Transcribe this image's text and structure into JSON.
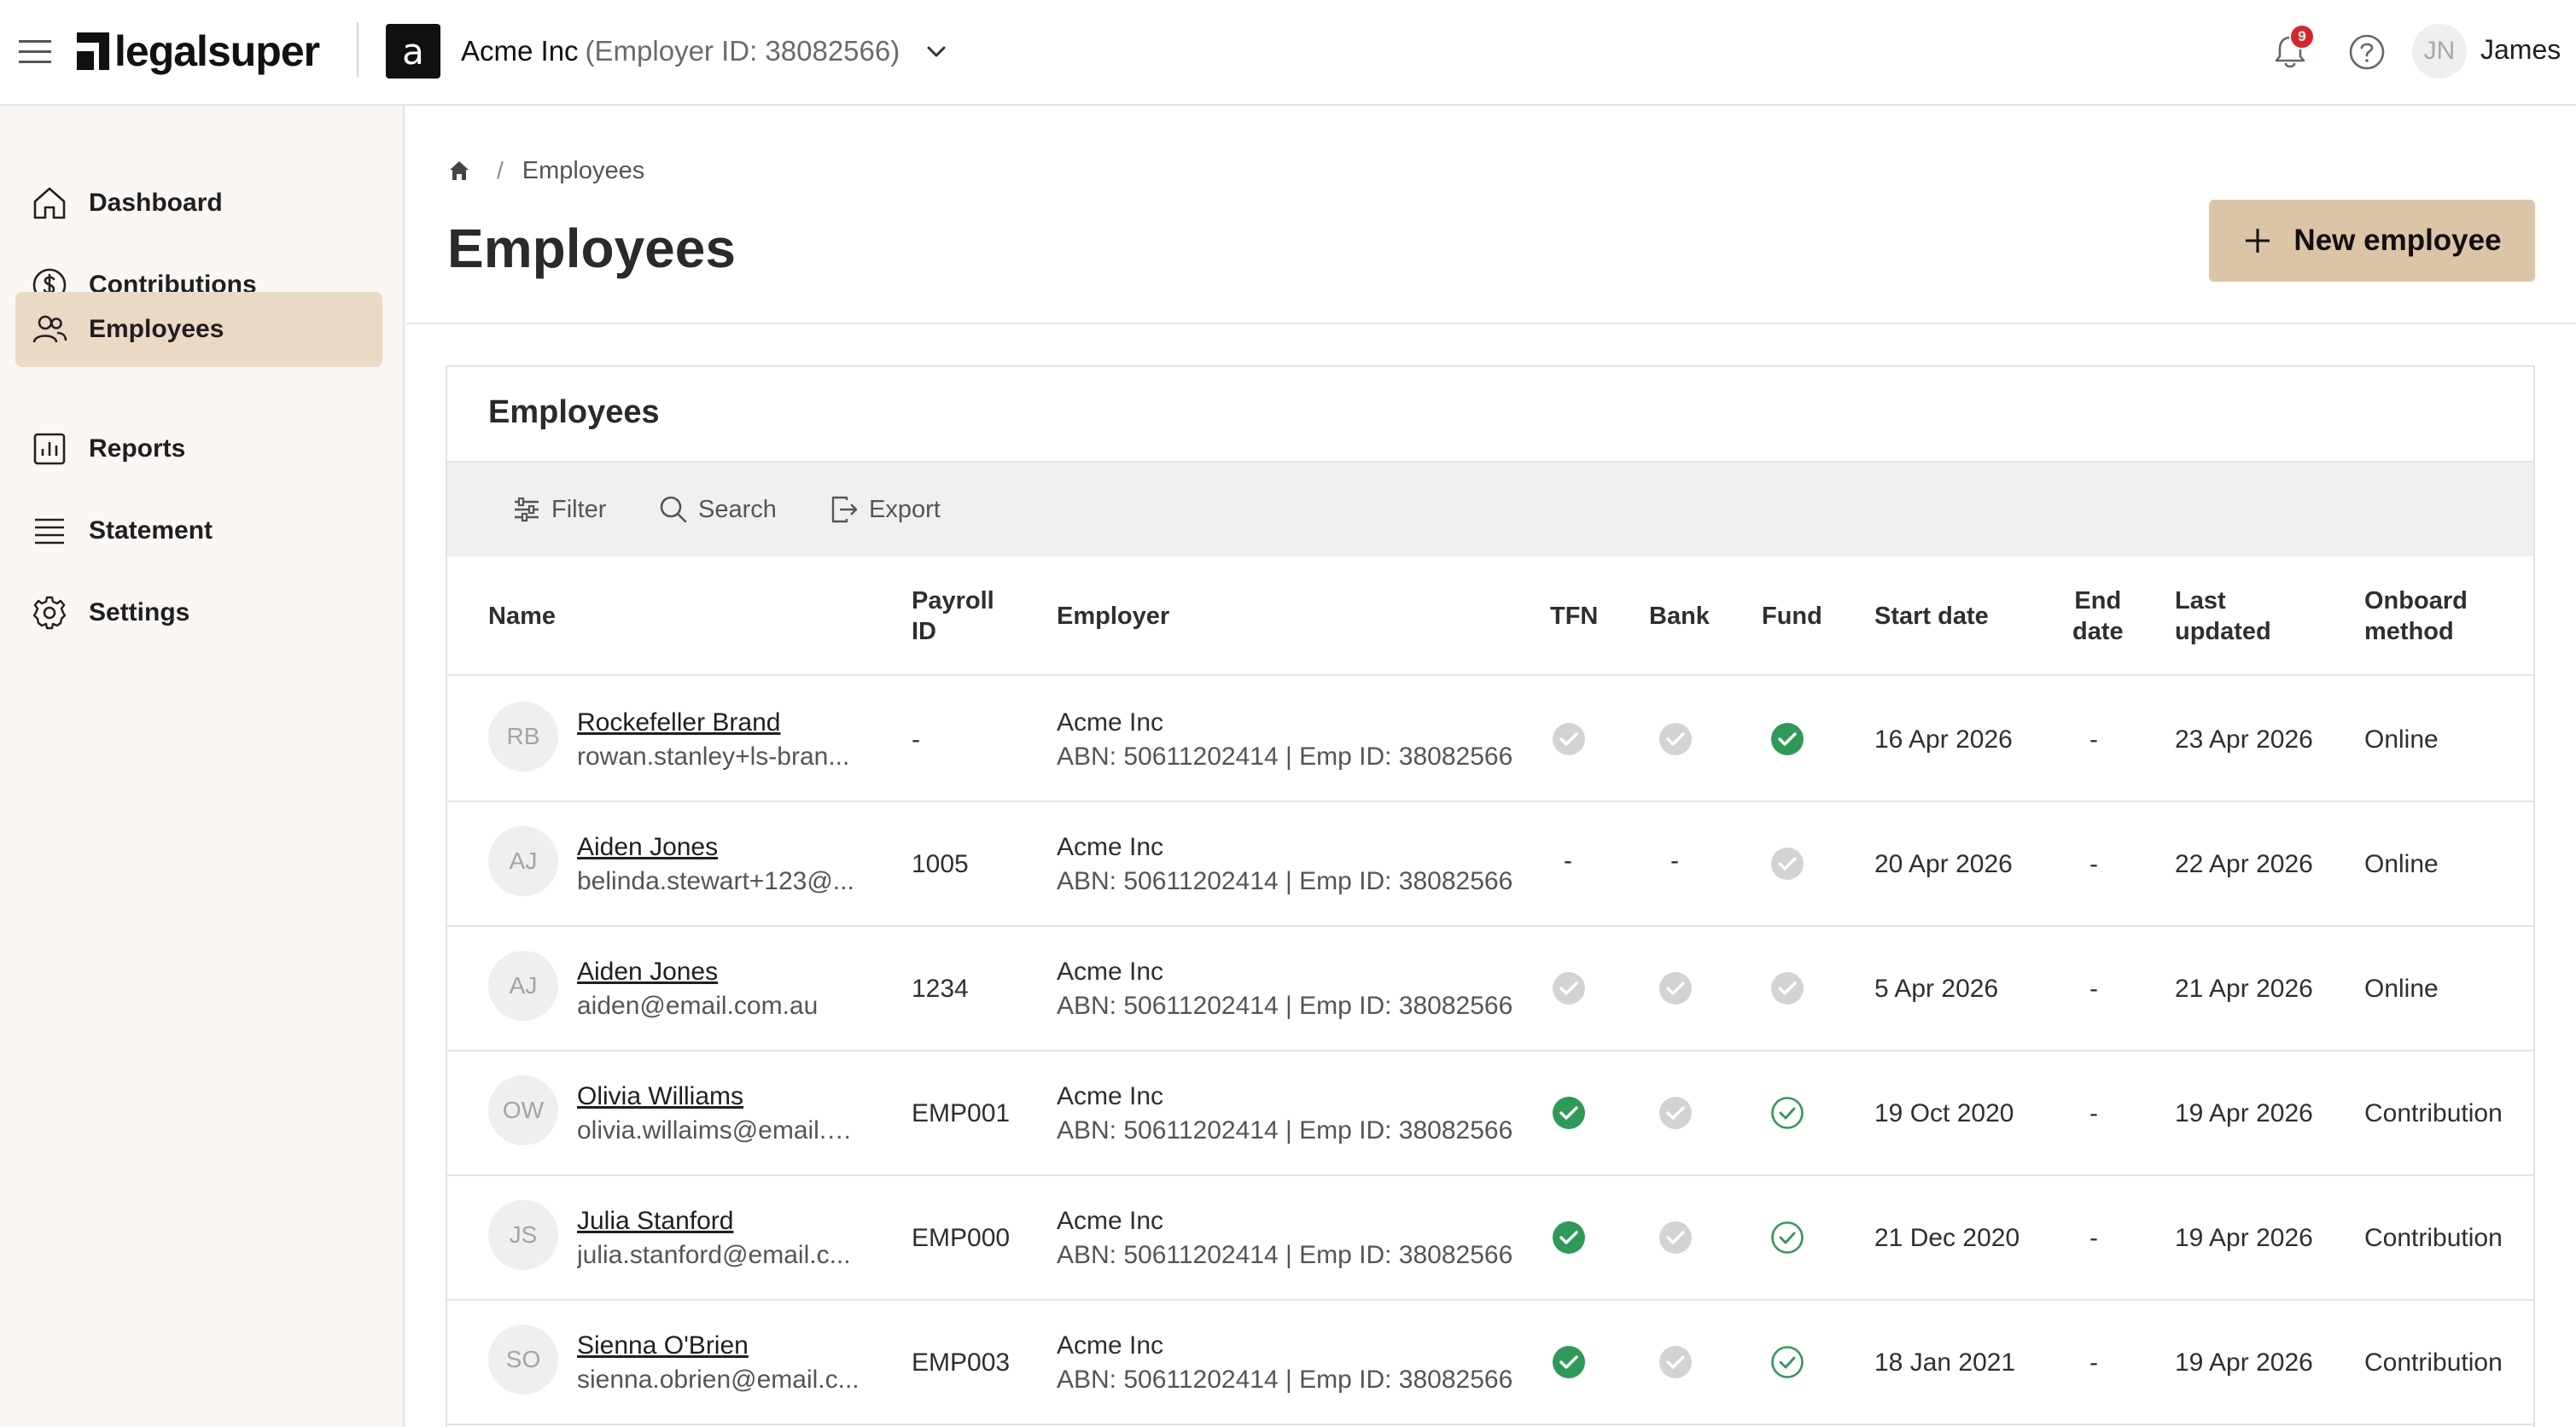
{
  "header": {
    "brand": "legalsuper",
    "employer_initial": "a",
    "employer_name": "Acme Inc",
    "employer_id": "(Employer ID: 38082566)",
    "notification_count": "9",
    "user_initials": "JN",
    "user_name": "James"
  },
  "sidebar": {
    "items": [
      {
        "label": "Dashboard",
        "icon": "home-icon"
      },
      {
        "label": "Contributions",
        "icon": "dollar-circle-icon"
      },
      {
        "label": "Employees",
        "icon": "users-icon",
        "active": true
      },
      {
        "label": "Reports",
        "icon": "bar-chart-icon"
      },
      {
        "label": "Statement",
        "icon": "list-icon"
      },
      {
        "label": "Settings",
        "icon": "gear-icon"
      }
    ]
  },
  "page": {
    "breadcrumb_sep": "/",
    "breadcrumb_current": "Employees",
    "title": "Employees",
    "new_button": "New employee"
  },
  "card": {
    "title": "Employees",
    "toolbar": {
      "filter": "Filter",
      "search": "Search",
      "export": "Export"
    },
    "columns": {
      "name": "Name",
      "payroll_1": "Payroll",
      "payroll_2": "ID",
      "employer": "Employer",
      "tfn": "TFN",
      "bank": "Bank",
      "fund": "Fund",
      "start": "Start date",
      "end_1": "End",
      "end_2": "date",
      "updated_1": "Last",
      "updated_2": "updated",
      "onboard_1": "Onboard",
      "onboard_2": "method"
    },
    "rows": [
      {
        "initials": "RB",
        "name": "Rockefeller Brand",
        "email": "rowan.stanley+ls-bran...",
        "payroll_id": "-",
        "employer": "Acme Inc",
        "abn": "ABN: 50611202414 | Emp ID: 38082566",
        "tfn": "grey",
        "bank": "grey",
        "fund": "green",
        "start": "16 Apr 2026",
        "end": "-",
        "updated": "23 Apr 2026",
        "onboard": "Online"
      },
      {
        "initials": "AJ",
        "name": "Aiden Jones",
        "email": "belinda.stewart+123@...",
        "payroll_id": "1005",
        "employer": "Acme Inc",
        "abn": "ABN: 50611202414 | Emp ID: 38082566",
        "tfn": "-",
        "bank": "-",
        "fund": "grey",
        "start": "20 Apr 2026",
        "end": "-",
        "updated": "22 Apr 2026",
        "onboard": "Online"
      },
      {
        "initials": "AJ",
        "name": "Aiden Jones",
        "email": "aiden@email.com.au",
        "payroll_id": "1234",
        "employer": "Acme Inc",
        "abn": "ABN: 50611202414 | Emp ID: 38082566",
        "tfn": "grey",
        "bank": "grey",
        "fund": "grey",
        "start": "5 Apr 2026",
        "end": "-",
        "updated": "21 Apr 2026",
        "onboard": "Online"
      },
      {
        "initials": "OW",
        "name": "Olivia Williams",
        "email": "olivia.willaims@email.c...",
        "payroll_id": "EMP001",
        "employer": "Acme Inc",
        "abn": "ABN: 50611202414 | Emp ID: 38082566",
        "tfn": "green",
        "bank": "grey",
        "fund": "outline",
        "start": "19 Oct 2020",
        "end": "-",
        "updated": "19 Apr 2026",
        "onboard": "Contribution"
      },
      {
        "initials": "JS",
        "name": "Julia Stanford",
        "email": "julia.stanford@email.c...",
        "payroll_id": "EMP000",
        "employer": "Acme Inc",
        "abn": "ABN: 50611202414 | Emp ID: 38082566",
        "tfn": "green",
        "bank": "grey",
        "fund": "outline",
        "start": "21 Dec 2020",
        "end": "-",
        "updated": "19 Apr 2026",
        "onboard": "Contribution"
      },
      {
        "initials": "SO",
        "name": "Sienna O'Brien",
        "email": "sienna.obrien@email.c...",
        "payroll_id": "EMP003",
        "employer": "Acme Inc",
        "abn": "ABN: 50611202414 | Emp ID: 38082566",
        "tfn": "green",
        "bank": "grey",
        "fund": "outline",
        "start": "18 Jan 2021",
        "end": "-",
        "updated": "19 Apr 2026",
        "onboard": "Contribution"
      }
    ]
  },
  "colors": {
    "accent": "#dcc4a7",
    "sidebar_active": "#ead9c5",
    "check_green": "#2e9a58",
    "check_grey": "#d3d3d3",
    "badge_red": "#d8262d"
  }
}
